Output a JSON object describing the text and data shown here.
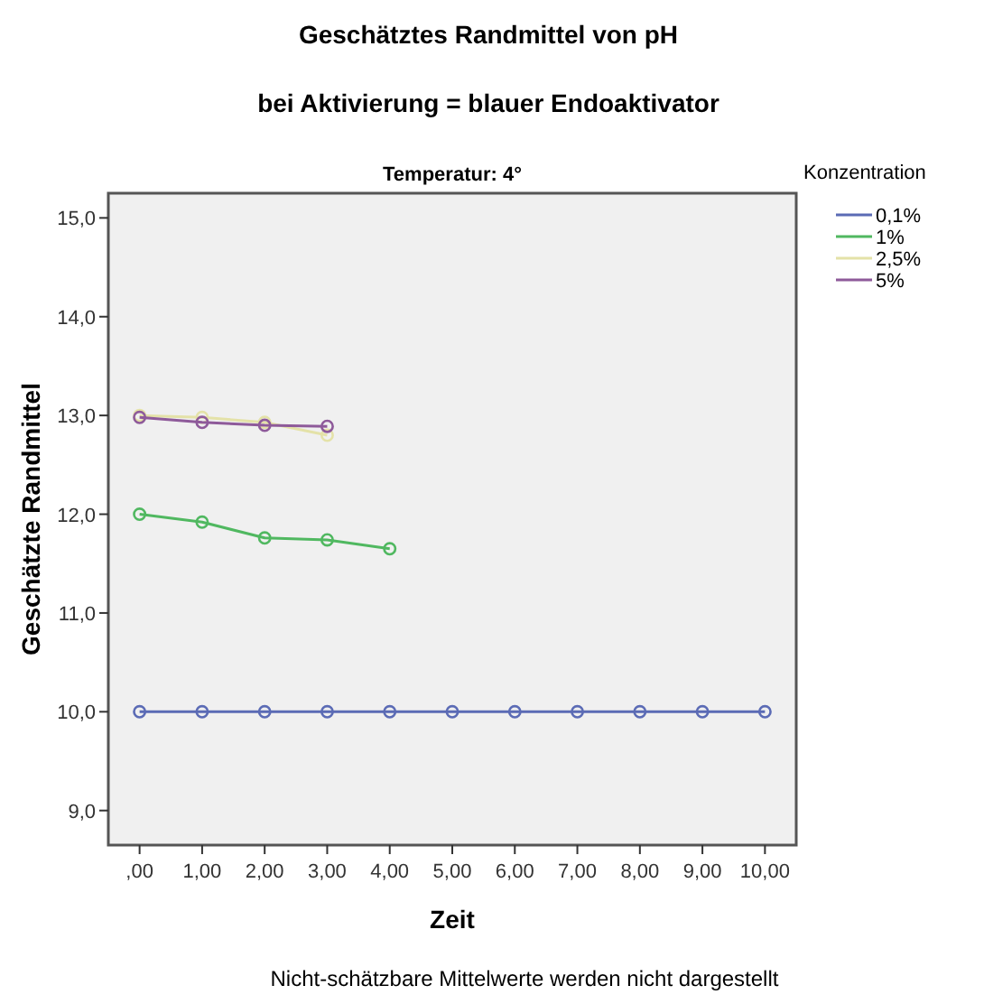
{
  "chart_data": {
    "type": "line",
    "title": "Geschätztes Randmittel von pH",
    "subtitle": "bei Aktivierung = blauer Endoaktivator",
    "xlabel": "Zeit",
    "ylabel": "Geschätzte Randmittel",
    "legend_title": "Konzentration",
    "annotations": [
      "Temperatur: 4°",
      "Nicht-schätzbare Mittelwerte werden nicht dargestellt"
    ],
    "xlim": [
      -0.5,
      10.5
    ],
    "xticks": [
      {
        "value": 0,
        "label": ",00"
      },
      {
        "value": 1,
        "label": "1,00"
      },
      {
        "value": 2,
        "label": "2,00"
      },
      {
        "value": 3,
        "label": "3,00"
      },
      {
        "value": 4,
        "label": "4,00"
      },
      {
        "value": 5,
        "label": "5,00"
      },
      {
        "value": 6,
        "label": "6,00"
      },
      {
        "value": 7,
        "label": "7,00"
      },
      {
        "value": 8,
        "label": "8,00"
      },
      {
        "value": 9,
        "label": "9,00"
      },
      {
        "value": 10,
        "label": "10,00"
      }
    ],
    "ylim": [
      8.65,
      15.25
    ],
    "yticks": [
      {
        "value": 9,
        "label": "9,0"
      },
      {
        "value": 10,
        "label": "10,0"
      },
      {
        "value": 11,
        "label": "11,0"
      },
      {
        "value": 12,
        "label": "12,0"
      },
      {
        "value": 13,
        "label": "13,0"
      },
      {
        "value": 14,
        "label": "14,0"
      },
      {
        "value": 15,
        "label": "15,0"
      }
    ],
    "grid": false,
    "legend": "top right",
    "marker": "circle",
    "line_style": "solid",
    "series": [
      {
        "name": "0,1%",
        "color": "#5b6bb5",
        "x": [
          0,
          1,
          2,
          3,
          4,
          5,
          6,
          7,
          8,
          9,
          10
        ],
        "values": [
          10,
          10,
          10,
          10,
          10,
          10,
          10,
          10,
          10,
          10,
          10
        ]
      },
      {
        "name": "1%",
        "color": "#50b860",
        "x": [
          0,
          1,
          2,
          3,
          4
        ],
        "values": [
          12.0,
          11.92,
          11.76,
          11.74,
          11.65
        ]
      },
      {
        "name": "2,5%",
        "color": "#e4e2a8",
        "x": [
          0,
          1,
          2,
          3
        ],
        "values": [
          13.0,
          12.98,
          12.93,
          12.8
        ]
      },
      {
        "name": "5%",
        "color": "#8e5a9a",
        "x": [
          0,
          1,
          2,
          3
        ],
        "values": [
          12.98,
          12.93,
          12.9,
          12.89
        ]
      }
    ]
  }
}
